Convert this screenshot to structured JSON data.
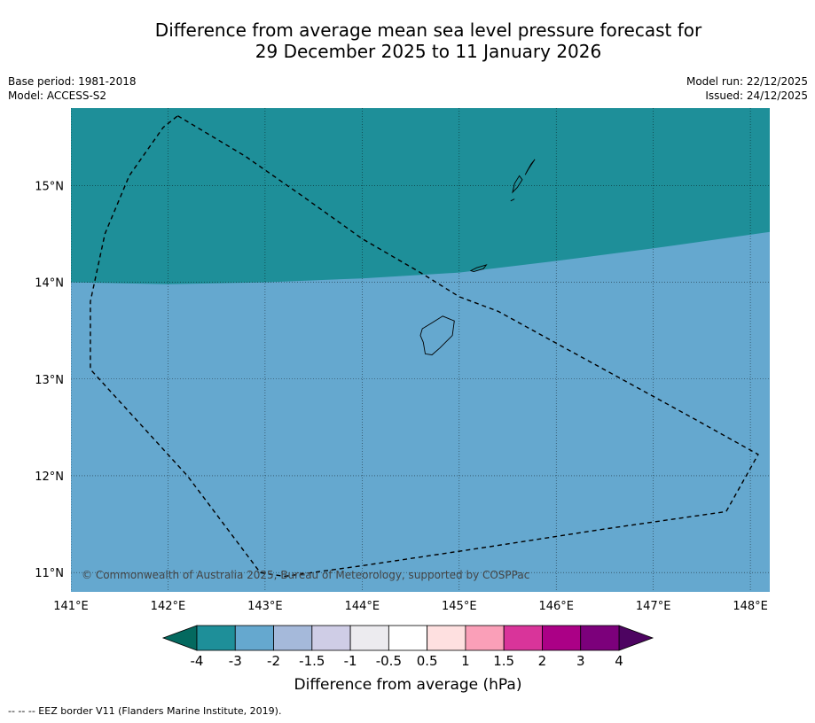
{
  "title": {
    "line1": "Difference from average mean sea level pressure forecast for",
    "line2": "29 December 2025 to 11 January 2026"
  },
  "meta": {
    "base_period": "Base period: 1981-2018",
    "model": "Model: ACCESS-S2",
    "model_run": "Model run: 22/12/2025",
    "issued": "Issued: 24/12/2025"
  },
  "map": {
    "lon_range": [
      141,
      148.2
    ],
    "lat_range": [
      10.8,
      15.8
    ],
    "lon_ticks": [
      {
        "value": 141,
        "label": "141°E"
      },
      {
        "value": 142,
        "label": "142°E"
      },
      {
        "value": 143,
        "label": "143°E"
      },
      {
        "value": 144,
        "label": "144°E"
      },
      {
        "value": 145,
        "label": "145°E"
      },
      {
        "value": 146,
        "label": "146°E"
      },
      {
        "value": 147,
        "label": "147°E"
      },
      {
        "value": 148,
        "label": "148°E"
      }
    ],
    "lat_ticks": [
      {
        "value": 15,
        "label": "15°N"
      },
      {
        "value": 14,
        "label": "14°N"
      },
      {
        "value": 13,
        "label": "13°N"
      },
      {
        "value": 12,
        "label": "12°N"
      },
      {
        "value": 11,
        "label": "11°N"
      }
    ],
    "regions": [
      {
        "name": "-4 to -3 hPa",
        "color": "#1e8f99",
        "boundary": [
          [
            141,
            14.0
          ],
          [
            142,
            13.98
          ],
          [
            143,
            14.0
          ],
          [
            144,
            14.04
          ],
          [
            145,
            14.1
          ],
          [
            146,
            14.22
          ],
          [
            147,
            14.35
          ],
          [
            148.2,
            14.52
          ]
        ]
      },
      {
        "name": "-3 to -2 hPa",
        "color": "#65a8cf"
      }
    ],
    "eez_border": [
      [
        142.1,
        15.72
      ],
      [
        142.8,
        15.3
      ],
      [
        143.4,
        14.88
      ],
      [
        144.0,
        14.45
      ],
      [
        144.6,
        14.1
      ],
      [
        145.0,
        13.85
      ],
      [
        145.4,
        13.7
      ],
      [
        146.4,
        13.15
      ],
      [
        147.4,
        12.6
      ],
      [
        148.08,
        12.22
      ],
      [
        147.75,
        11.63
      ],
      [
        146.5,
        11.45
      ],
      [
        145.2,
        11.25
      ],
      [
        144.0,
        11.07
      ],
      [
        143.2,
        10.96
      ],
      [
        142.95,
        11.0
      ],
      [
        142.2,
        12.0
      ],
      [
        141.2,
        13.1
      ],
      [
        141.2,
        13.8
      ],
      [
        141.35,
        14.5
      ],
      [
        141.6,
        15.1
      ],
      [
        141.95,
        15.6
      ],
      [
        142.1,
        15.72
      ]
    ],
    "islands": [
      {
        "name": "Guam",
        "coords": [
          [
            144.62,
            13.52
          ],
          [
            144.72,
            13.58
          ],
          [
            144.83,
            13.65
          ],
          [
            144.95,
            13.6
          ],
          [
            144.93,
            13.45
          ],
          [
            144.8,
            13.32
          ],
          [
            144.72,
            13.25
          ],
          [
            144.65,
            13.26
          ],
          [
            144.63,
            13.38
          ],
          [
            144.6,
            13.45
          ],
          [
            144.62,
            13.52
          ]
        ]
      },
      {
        "name": "Rota",
        "coords": [
          [
            145.12,
            14.12
          ],
          [
            145.18,
            14.15
          ],
          [
            145.28,
            14.18
          ],
          [
            145.25,
            14.14
          ],
          [
            145.15,
            14.11
          ],
          [
            145.12,
            14.12
          ]
        ]
      },
      {
        "name": "Tinian",
        "coords": [
          [
            145.55,
            14.93
          ],
          [
            145.6,
            14.98
          ],
          [
            145.65,
            15.06
          ],
          [
            145.62,
            15.1
          ],
          [
            145.57,
            15.02
          ],
          [
            145.55,
            14.93
          ]
        ]
      },
      {
        "name": "Saipan",
        "coords": [
          [
            145.68,
            15.11
          ],
          [
            145.72,
            15.18
          ],
          [
            145.78,
            15.27
          ],
          [
            145.74,
            15.22
          ],
          [
            145.7,
            15.15
          ],
          [
            145.68,
            15.11
          ]
        ]
      },
      {
        "name": "Aguijan",
        "coords": [
          [
            145.53,
            14.84
          ],
          [
            145.57,
            14.86
          ],
          [
            145.55,
            14.85
          ],
          [
            145.53,
            14.84
          ]
        ]
      }
    ],
    "copyright": "© Commonwealth of Australia 2025, Bureau of Meteorology, supported by COSPPac"
  },
  "colorbar": {
    "title": "Difference from average (hPa)",
    "under_color": "#04695f",
    "over_color": "#4d0461",
    "colors": [
      "#1e8f99",
      "#65a8cf",
      "#a5b9da",
      "#cfcde6",
      "#ecebef",
      "#ffffff",
      "#fee0e0",
      "#fa9fb8",
      "#d9349a",
      "#ab0086",
      "#7c007b"
    ],
    "labels": [
      "-4",
      "-3",
      "-2",
      "-1.5",
      "-1",
      "-0.5",
      "0.5",
      "1",
      "1.5",
      "2",
      "3",
      "4"
    ]
  },
  "footnote": "--  --  -- EEZ border V11 (Flanders Marine Institute, 2019)."
}
